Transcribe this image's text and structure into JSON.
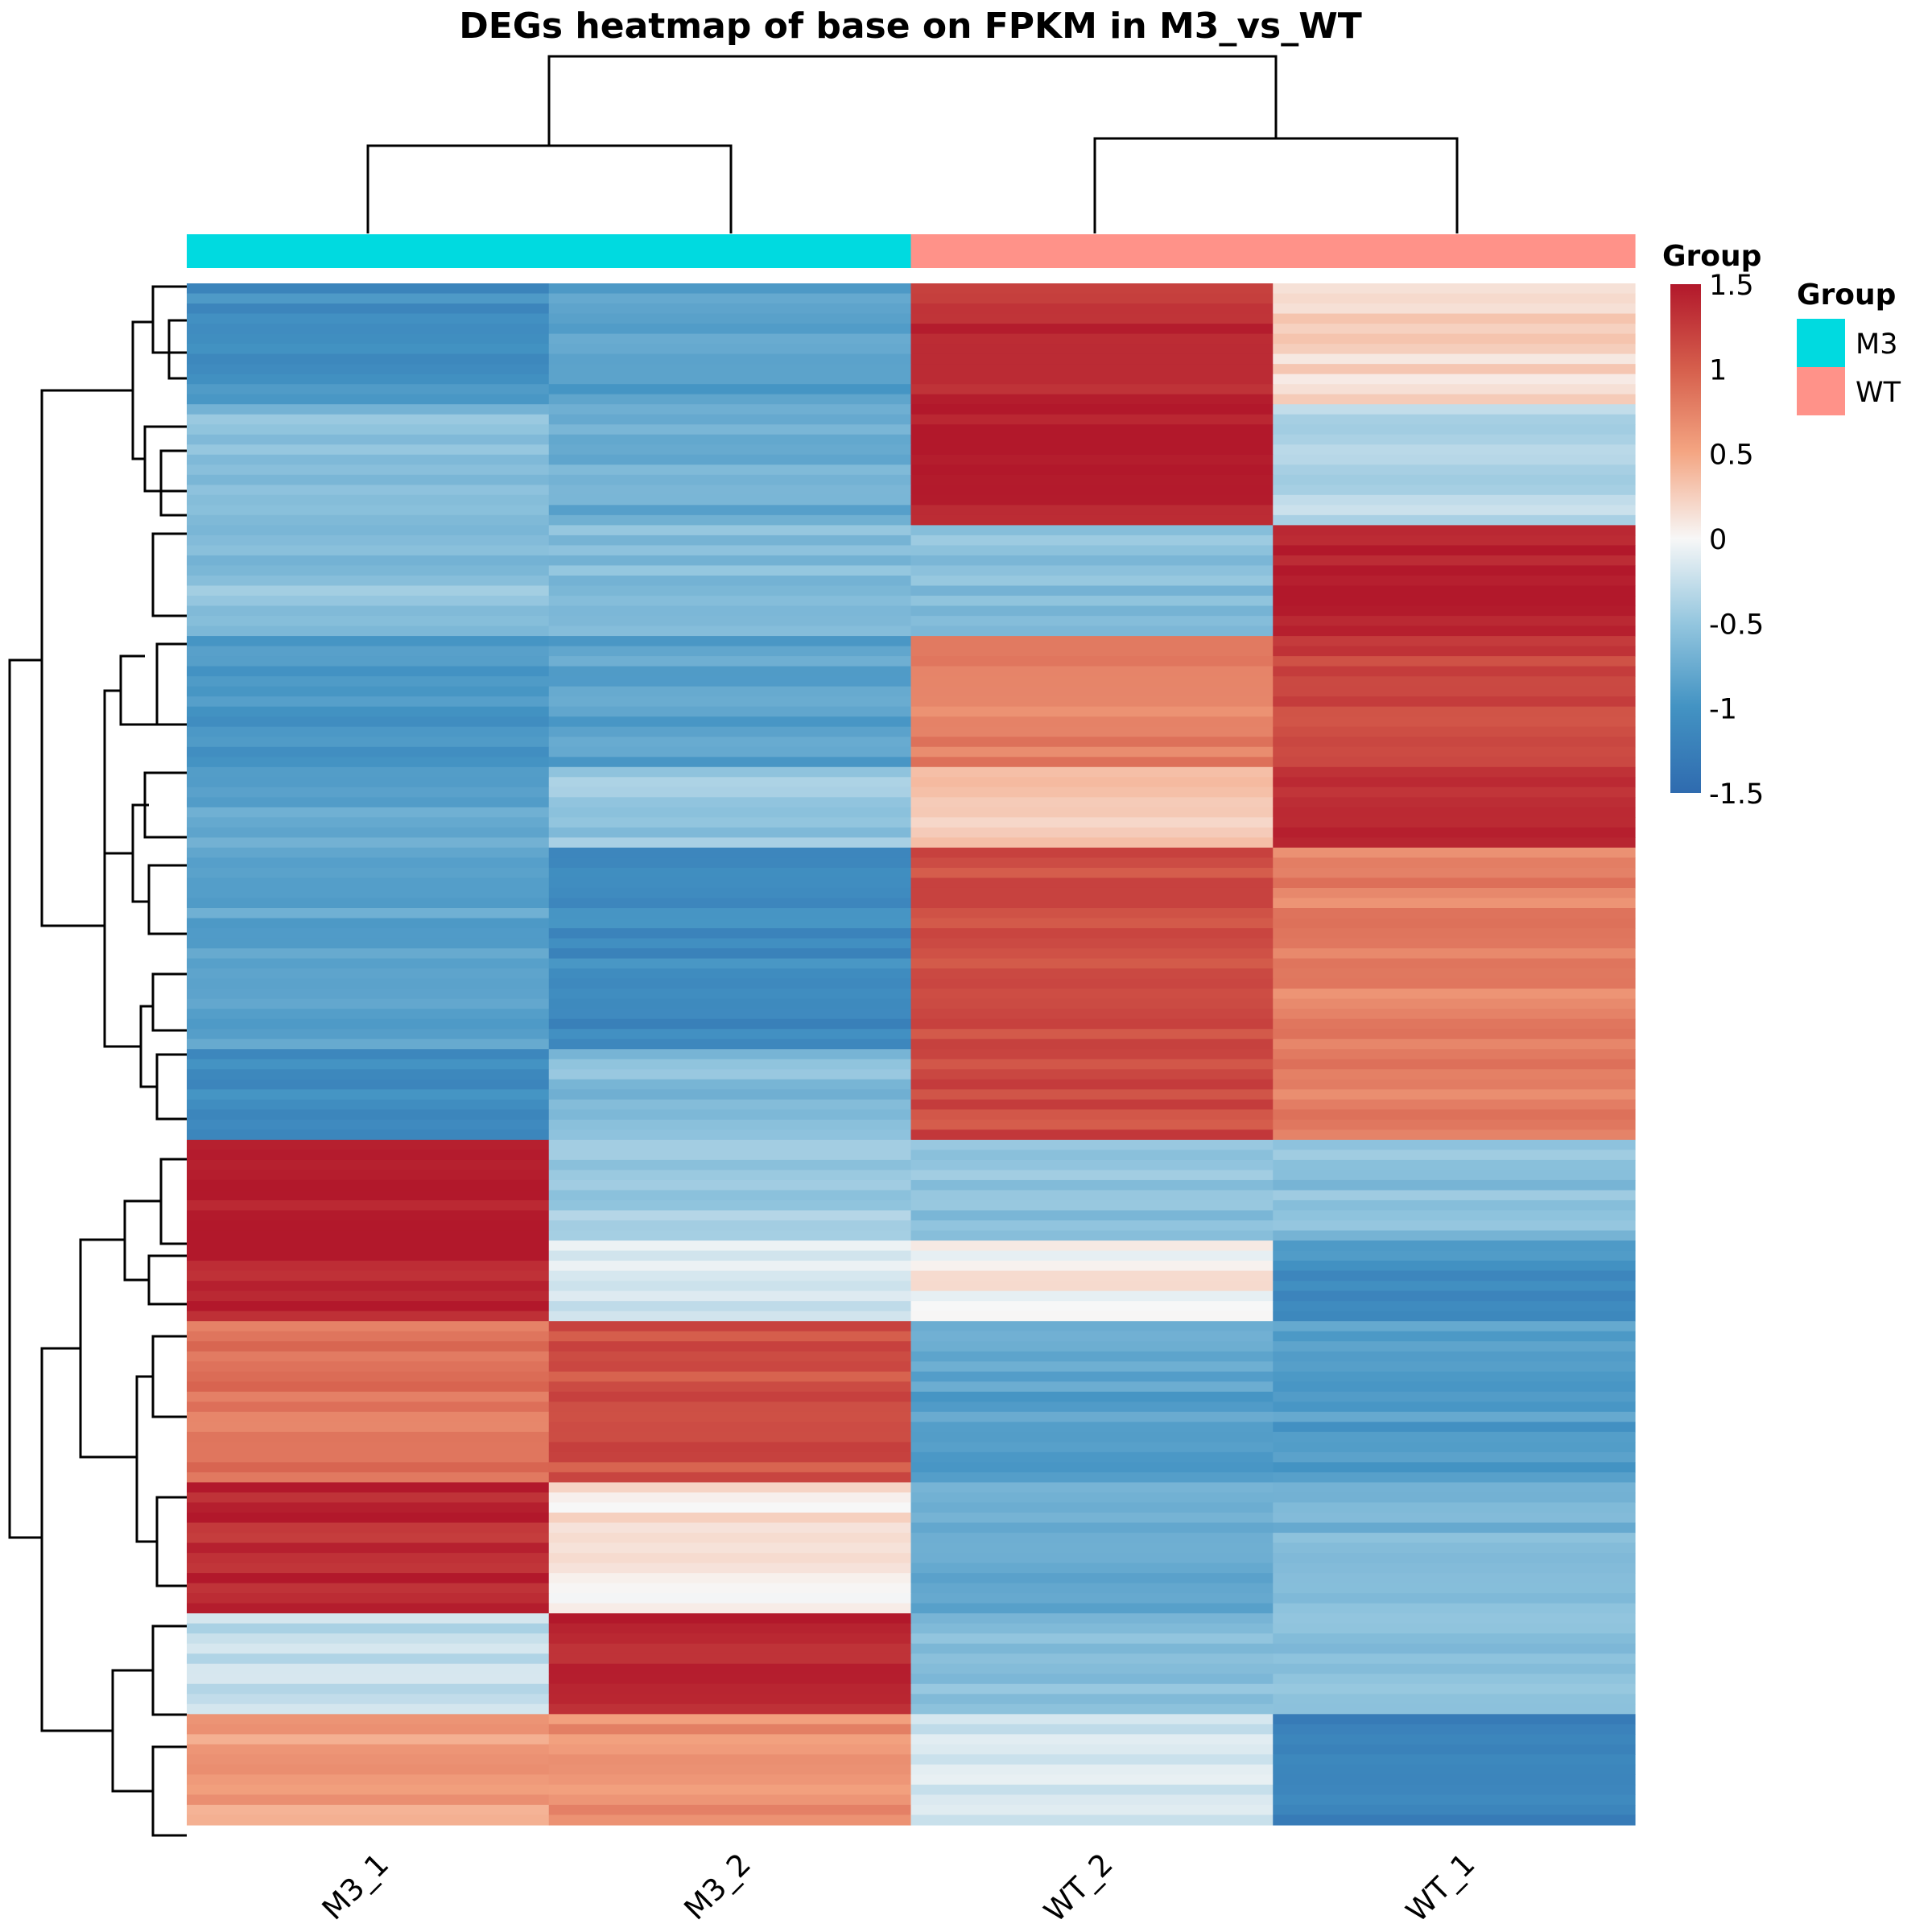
{
  "chart_data": {
    "type": "heatmap",
    "title": "DEGs heatmap of base on FPKM in M3_vs_WT",
    "columns": [
      "M3_1",
      "M3_2",
      "WT_2",
      "WT_1"
    ],
    "column_groups": [
      "M3",
      "M3",
      "WT",
      "WT"
    ],
    "group_colors": {
      "M3": "#00DAE0",
      "WT": "#FF9289"
    },
    "color_scale": {
      "min": -1.5,
      "max": 1.5,
      "low_color": "#2F6BAF",
      "mid_color": "#F7F7F7",
      "high_color": "#B2182B",
      "ticks": [
        1.5,
        1,
        0.5,
        0,
        -0.5,
        -1,
        -1.5
      ],
      "tick_labels": [
        "1.5",
        "1",
        "0.5",
        "0",
        "-0.5",
        "-1",
        "-1.5"
      ]
    },
    "color_legend_title": "Group",
    "group_legend": {
      "title": "Group",
      "items": [
        {
          "label": "M3",
          "color": "#00DAE0"
        },
        {
          "label": "WT",
          "color": "#FF9289"
        }
      ]
    },
    "row_blocks": [
      {
        "rows": 12,
        "values": [
          -1.05,
          -0.85,
          1.35,
          0.2
        ]
      },
      {
        "rows": 12,
        "values": [
          -0.6,
          -0.75,
          1.48,
          -0.3
        ]
      },
      {
        "rows": 11,
        "values": [
          -0.55,
          -0.6,
          -0.55,
          1.48
        ]
      },
      {
        "rows": 13,
        "values": [
          -1.0,
          -0.85,
          0.75,
          1.2
        ]
      },
      {
        "rows": 8,
        "values": [
          -0.8,
          -0.5,
          0.3,
          1.35
        ]
      },
      {
        "rows": 20,
        "values": [
          -0.8,
          -1.1,
          1.1,
          0.75
        ]
      },
      {
        "rows": 9,
        "values": [
          -1.05,
          -0.6,
          1.15,
          0.8
        ]
      },
      {
        "rows": 10,
        "values": [
          1.48,
          -0.45,
          -0.55,
          -0.55
        ]
      },
      {
        "rows": 8,
        "values": [
          1.45,
          -0.15,
          0.05,
          -1.05
        ]
      },
      {
        "rows": 16,
        "values": [
          0.85,
          1.1,
          -0.85,
          -0.9
        ]
      },
      {
        "rows": 13,
        "values": [
          1.38,
          0.1,
          -0.75,
          -0.65
        ]
      },
      {
        "rows": 10,
        "values": [
          -0.25,
          1.45,
          -0.55,
          -0.6
        ]
      },
      {
        "rows": 11,
        "values": [
          0.55,
          0.65,
          -0.15,
          -1.25
        ]
      }
    ]
  }
}
